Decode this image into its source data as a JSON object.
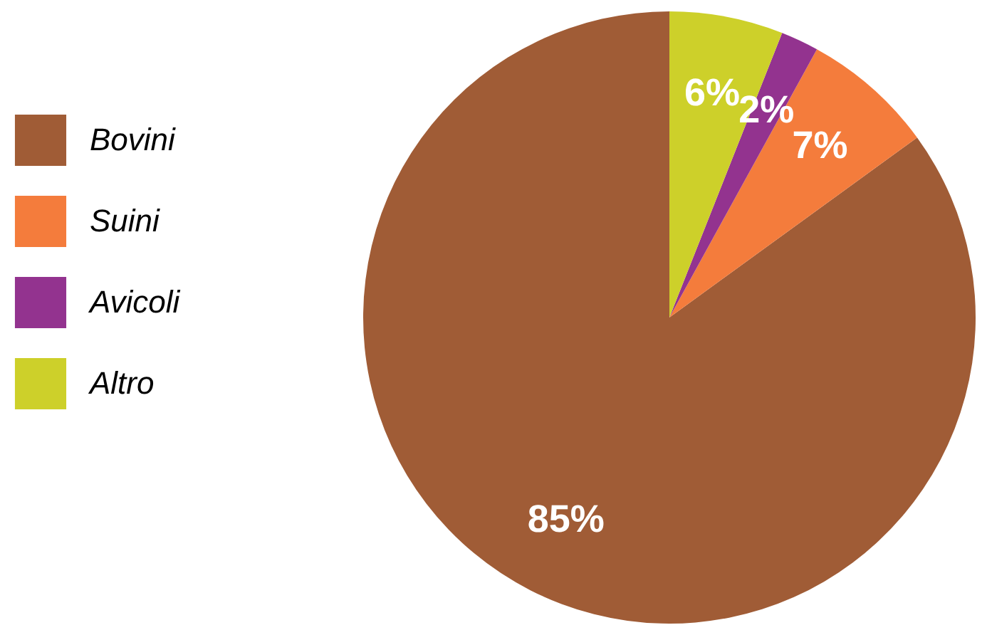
{
  "chart_data": {
    "type": "pie",
    "categories": [
      "Bovini",
      "Suini",
      "Avicoli",
      "Altro"
    ],
    "values": [
      85,
      7,
      2,
      6
    ],
    "colors": [
      "#a05c36",
      "#f47c3c",
      "#93338f",
      "#cdd02a"
    ],
    "value_labels": [
      "85%",
      "7%",
      "2%",
      "6%"
    ],
    "legend": "left"
  }
}
